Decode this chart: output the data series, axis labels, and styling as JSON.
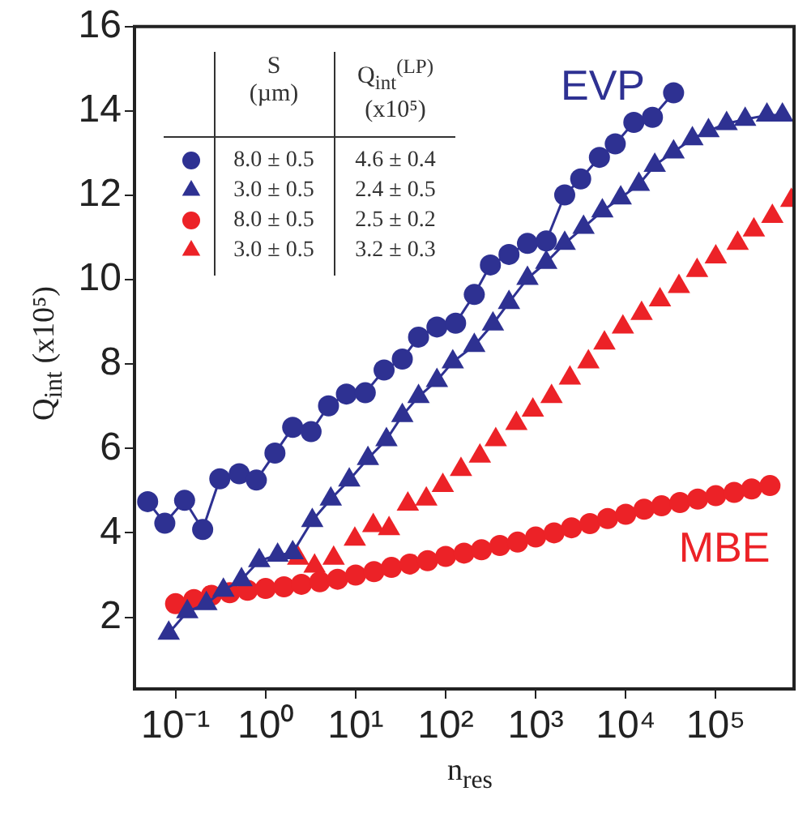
{
  "chart_data": {
    "type": "line",
    "xlabel": "n$_{res}$",
    "ylabel": "Q$_{int}$ (x10⁵)",
    "legend_title": "S (µm)",
    "log": "x",
    "grid": false,
    "legend": "top left",
    "xlim": [
      0.035,
      740000
    ],
    "ylim": [
      0.3,
      16
    ],
    "xticks": [
      {
        "value": 0.1,
        "label": "10⁻¹"
      },
      {
        "value": 1,
        "label": "10⁰"
      },
      {
        "value": 10,
        "label": "10¹"
      },
      {
        "value": 100,
        "label": "10²"
      },
      {
        "value": 1000,
        "label": "10³"
      },
      {
        "value": 10000,
        "label": "10⁴"
      },
      {
        "value": 100000,
        "label": "10⁵"
      }
    ],
    "yticks": [
      2,
      4,
      6,
      8,
      10,
      12,
      14,
      16
    ],
    "annotations": [
      "EVP",
      "MBE",
      "Q$_{int}$$^{(LP)}$ (x10⁵)",
      "4.6 ± 0.4",
      "2.4 ± 0.5",
      "2.5 ± 0.2",
      "3.2 ± 0.3"
    ],
    "series": [
      {
        "name": "8.0 ± 0.5",
        "marker": "circle",
        "color": "#2e3192",
        "x": [
          0.049,
          0.076,
          0.126,
          0.2,
          0.31,
          0.51,
          0.79,
          1.27,
          2,
          3.2,
          5,
          7.9,
          12.8,
          20.7,
          33,
          50,
          80,
          129,
          208,
          314,
          505,
          810,
          1310,
          2100,
          3160,
          5100,
          7650,
          12300,
          19800,
          34000
        ],
        "values": [
          4.74,
          4.23,
          4.77,
          4.08,
          5.28,
          5.4,
          5.25,
          5.89,
          6.5,
          6.4,
          7.01,
          7.29,
          7.32,
          7.86,
          8.12,
          8.64,
          8.88,
          8.97,
          9.65,
          10.35,
          10.6,
          10.86,
          10.92,
          12.01,
          12.39,
          12.9,
          13.22,
          13.73,
          13.85,
          14.43
        ]
      },
      {
        "name": "3.0 ± 0.5",
        "marker": "triangle",
        "color": "#2e3192",
        "x": [
          0.084,
          0.135,
          0.22,
          0.34,
          0.54,
          0.85,
          1.36,
          2,
          3.3,
          5.3,
          8.5,
          13.7,
          22,
          33,
          50,
          80,
          120,
          208,
          335,
          505,
          810,
          1310,
          2100,
          3400,
          5500,
          8800,
          14000,
          21000,
          34000,
          55000,
          83000,
          132000,
          212000,
          370000,
          550000
        ],
        "values": [
          1.62,
          2.13,
          2.32,
          2.64,
          2.89,
          3.34,
          3.47,
          3.53,
          4.29,
          4.8,
          5.25,
          5.76,
          6.21,
          6.78,
          7.23,
          7.61,
          8.05,
          8.44,
          8.95,
          9.46,
          10.03,
          10.41,
          10.86,
          11.24,
          11.63,
          11.94,
          12.26,
          12.71,
          13.03,
          13.34,
          13.53,
          13.7,
          13.8,
          13.9,
          13.9
        ]
      },
      {
        "name": "8.0 ± 0.5",
        "type": "scatter",
        "marker": "circle",
        "color": "#ec2227",
        "x": [
          0.1,
          0.16,
          0.25,
          0.4,
          0.63,
          1,
          1.6,
          2.5,
          4,
          6.3,
          10,
          16,
          25,
          40,
          63,
          100,
          160,
          250,
          400,
          630,
          1000,
          1600,
          2500,
          4000,
          6300,
          10000,
          16000,
          25000,
          40000,
          63000,
          100000,
          160000,
          250000,
          400000
        ],
        "values": [
          2.32,
          2.42,
          2.52,
          2.58,
          2.64,
          2.68,
          2.72,
          2.78,
          2.84,
          2.9,
          3.0,
          3.08,
          3.18,
          3.26,
          3.34,
          3.44,
          3.52,
          3.6,
          3.7,
          3.78,
          3.9,
          4.0,
          4.12,
          4.22,
          4.34,
          4.44,
          4.56,
          4.64,
          4.72,
          4.8,
          4.88,
          4.96,
          5.04,
          5.12
        ]
      },
      {
        "name": "3.0 ± 0.5",
        "type": "scatter",
        "marker": "triangle",
        "color": "#ec2227",
        "x": [
          2.3,
          3.5,
          5.7,
          9.8,
          15.7,
          23.5,
          38,
          61,
          93,
          148,
          240,
          360,
          610,
          930,
          1500,
          2400,
          3850,
          5800,
          9300,
          15000,
          24000,
          39000,
          62000,
          100000,
          175000,
          265000,
          425000,
          690000
        ],
        "values": [
          3.4,
          3.21,
          3.4,
          3.85,
          4.17,
          4.1,
          4.68,
          4.8,
          5.12,
          5.5,
          5.82,
          6.21,
          6.59,
          6.91,
          7.23,
          7.67,
          8.05,
          8.5,
          8.88,
          9.2,
          9.52,
          9.84,
          10.22,
          10.54,
          10.86,
          11.18,
          11.5,
          11.88
        ]
      }
    ]
  }
}
